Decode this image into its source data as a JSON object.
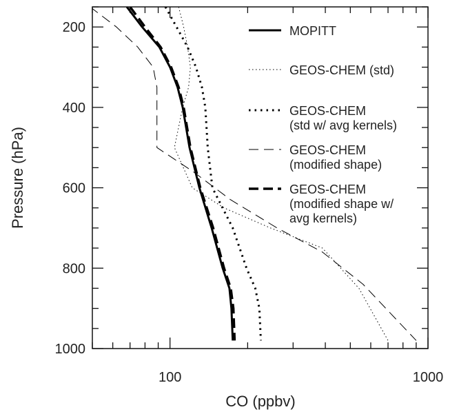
{
  "chart_data": {
    "type": "line",
    "xlabel": "CO (ppbv)",
    "ylabel": "Pressure (hPa)",
    "x_scale": "log",
    "y_scale": "linear",
    "y_reversed": true,
    "xlim": [
      50,
      1000
    ],
    "ylim": [
      150,
      1000
    ],
    "x_tick_labels": [
      "100",
      "1000"
    ],
    "y_tick_labels": [
      "200",
      "400",
      "600",
      "800",
      "1000"
    ],
    "grid": false,
    "legend_position": "right",
    "series": [
      {
        "name": "MOPITT",
        "style": "solid-thick",
        "x": [
          68,
          78,
          91,
          100,
          107,
          112,
          119,
          130,
          145,
          160,
          170,
          173,
          175
        ],
        "y": [
          150,
          200,
          250,
          300,
          350,
          400,
          500,
          600,
          700,
          800,
          850,
          900,
          980
        ]
      },
      {
        "name": "GEOS-CHEM (std)",
        "style": "dotted-thin",
        "x": [
          108,
          113,
          117,
          120,
          118,
          112,
          104,
          122,
          162,
          245,
          390,
          540,
          700
        ],
        "y": [
          150,
          200,
          250,
          300,
          350,
          400,
          500,
          600,
          650,
          700,
          750,
          850,
          980
        ]
      },
      {
        "name": "GEOS-CHEM (std w/ avg kernels)",
        "style": "dotted-thick",
        "x": [
          96,
          106,
          117,
          126,
          133,
          137,
          140,
          146,
          175,
          198,
          214,
          222,
          225
        ],
        "y": [
          150,
          200,
          250,
          300,
          350,
          400,
          500,
          600,
          700,
          800,
          850,
          900,
          980
        ]
      },
      {
        "name": "GEOS-CHEM (modified shape)",
        "style": "dashed-thin",
        "x": [
          49,
          62,
          75,
          86,
          89,
          89,
          89,
          123,
          172,
          260,
          390,
          560,
          900
        ],
        "y": [
          150,
          200,
          250,
          300,
          350,
          400,
          500,
          560,
          630,
          700,
          760,
          840,
          980
        ]
      },
      {
        "name": "GEOS-CHEM (modified shape w/ avg kernels)",
        "style": "dashed-thick",
        "x": [
          70,
          80,
          92,
          101,
          108,
          113,
          120,
          131,
          147,
          162,
          172,
          176,
          178
        ],
        "y": [
          150,
          200,
          250,
          300,
          350,
          400,
          500,
          600,
          700,
          800,
          850,
          900,
          980
        ]
      }
    ],
    "legend": [
      {
        "lines": [
          "MOPITT"
        ],
        "style": "solid-thick"
      },
      {
        "lines": [
          "GEOS-CHEM (std)"
        ],
        "style": "dotted-thin"
      },
      {
        "lines": [
          "GEOS-CHEM",
          "(std w/ avg kernels)"
        ],
        "style": "dotted-thick"
      },
      {
        "lines": [
          "GEOS-CHEM",
          "(modified shape)"
        ],
        "style": "dashed-thin"
      },
      {
        "lines": [
          "GEOS-CHEM",
          "(modified shape w/",
          "avg kernels)"
        ],
        "style": "dashed-thick"
      }
    ]
  }
}
